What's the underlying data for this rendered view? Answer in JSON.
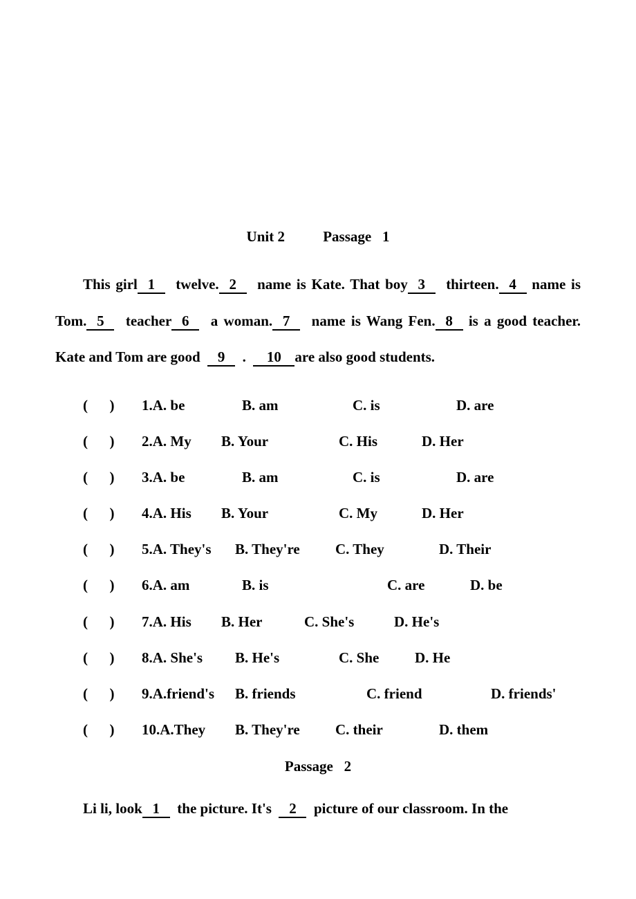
{
  "colors": {
    "text": "#000000",
    "background": "#ffffff",
    "underline": "#000000"
  },
  "typography": {
    "font_family": "Times New Roman",
    "font_weight": "bold",
    "body_fontsize": 21,
    "line_height": 2.5
  },
  "header": {
    "unit": "Unit 2",
    "passage_label": "Passage",
    "passage_number": "1"
  },
  "passage1": {
    "text_parts": {
      "p1": "This girl",
      "b1": "1",
      "p2": "twelve.",
      "b2": "2",
      "p3": "name is Kate. That boy",
      "b3": "3",
      "p4": "thirteen.",
      "b4": "4",
      "p5": "name is Tom.",
      "b5": "5",
      "p6": "teacher",
      "b6": "6",
      "p7": "a woman.",
      "b7": "7",
      "p8": "name is Wang Fen.",
      "b8": "8",
      "p9": "is a good teacher. Kate and Tom are good",
      "b9": "9",
      "p10": ".",
      "b10": "10",
      "p11": "are also good students."
    }
  },
  "questions": [
    {
      "num": "1",
      "a": "A. be",
      "b": "B. am",
      "c": "C. is",
      "d": "D. are"
    },
    {
      "num": "2",
      "a": "A. My",
      "b": "B. Your",
      "c": "C. His",
      "d": "D. Her"
    },
    {
      "num": "3",
      "a": "A. be",
      "b": "B. am",
      "c": "C. is",
      "d": "D. are"
    },
    {
      "num": "4",
      "a": "A. His",
      "b": "B. Your",
      "c": "C. My",
      "d": "D. Her"
    },
    {
      "num": "5",
      "a": "A. They's",
      "b": "B. They're",
      "c": "C. They",
      "d": "D. Their"
    },
    {
      "num": "6",
      "a": "A. am",
      "b": "B. is",
      "c": "C. are",
      "d": "D. be"
    },
    {
      "num": "7",
      "a": "A. His",
      "b": "B. Her",
      "c": "C. She's",
      "d": "D. He's"
    },
    {
      "num": "8",
      "a": "A. She's",
      "b": "B. He's",
      "c": "C. She",
      "d": "D. He"
    },
    {
      "num": "9",
      "a": "A.friend's",
      "b": "B. friends",
      "c": "C. friend",
      "d": "D. friends'"
    },
    {
      "num": "10",
      "a": "A.They",
      "b": "B. They're",
      "c": "C. their",
      "d": "D. them"
    }
  ],
  "question_layout": {
    "paren": "(",
    "paren_close": ")",
    "offsets": {
      "q1": {
        "b": 0,
        "c": 0,
        "d": 0
      },
      "q2": {
        "b": -30,
        "c": 10,
        "d": -30
      },
      "q3": {
        "b": 0,
        "c": 0,
        "d": 0
      },
      "q4": {
        "b": -30,
        "c": 10,
        "d": -30
      },
      "q5": {
        "b": -10,
        "c": -15,
        "d": 0
      },
      "q6": {
        "b": 0,
        "c": 50,
        "d": -30
      },
      "q7": {
        "b": -30,
        "c": -40,
        "d": -20
      },
      "q8": {
        "b": -10,
        "c": -10,
        "d": -40
      },
      "q9": {
        "b": -10,
        "c": 30,
        "d": 30
      },
      "q10": {
        "b": -10,
        "c": -15,
        "d": 0
      }
    }
  },
  "passage2_header": {
    "label": "Passage",
    "number": "2"
  },
  "passage2": {
    "text_parts": {
      "p1": "Li li, look",
      "b1": "1",
      "p2": "the picture. It's",
      "b2": "2",
      "p3": "picture of our classroom. In the"
    }
  }
}
